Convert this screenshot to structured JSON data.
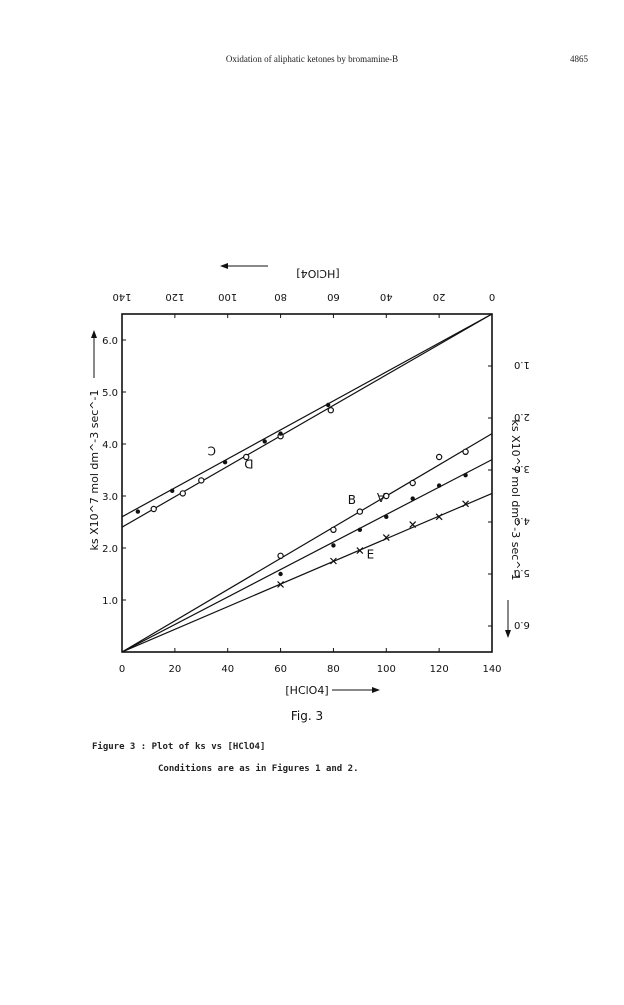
{
  "header": {
    "running_title": "Oxidation of aliphatic ketones by bromamine-B",
    "page_number": "4865"
  },
  "figure": {
    "label": "Fig. 3",
    "caption": "Figure 3 : Plot of ks vs [HClO4]",
    "conditions": "Conditions are as in Figures 1 and 2."
  },
  "chart_data": {
    "type": "line",
    "xlabel": "[HClO4]",
    "ylabel": "ks X10^7 mol dm^-3 sec^-1",
    "top_xlabel": "[HClO4]",
    "right_ylabel": "ks X10^7 mol dm^-3 sec^-1",
    "xlim": [
      0,
      140
    ],
    "ylim": [
      0,
      6.5
    ],
    "x_ticks": [
      "0",
      "20",
      "40",
      "60",
      "80",
      "100",
      "120",
      "140"
    ],
    "y_ticks": [
      "1.0",
      "2.0",
      "3.0",
      "4.0",
      "5.0",
      "6.0"
    ],
    "top_x_ticks": [
      "140",
      "120",
      "100",
      "80",
      "60",
      "40",
      "20",
      "0"
    ],
    "right_y_ticks": [
      "1.0",
      "2.0",
      "3.0",
      "4.0",
      "5.0",
      "6.0"
    ],
    "top_axis_note": "top and right axes run reversed (rotated 180°)",
    "series": [
      {
        "name": "D",
        "axis": "top-right",
        "marker": "circle-arrow",
        "line_x": [
          0,
          140
        ],
        "line_y": [
          0,
          4.1
        ],
        "points_x": [
          128,
          117,
          110,
          93,
          80,
          61
        ],
        "points_y": [
          3.75,
          3.45,
          3.2,
          2.75,
          2.35,
          1.85
        ]
      },
      {
        "name": "C",
        "axis": "top-right",
        "marker": "dot-arrow",
        "line_x": [
          0,
          140
        ],
        "line_y": [
          0,
          3.9
        ],
        "points_x": [
          134,
          121,
          101,
          86,
          80,
          62
        ],
        "points_y": [
          3.8,
          3.4,
          2.85,
          2.45,
          2.3,
          1.75
        ]
      },
      {
        "name": "B",
        "axis": "bottom-left",
        "marker": "circle",
        "line_x": [
          0,
          140
        ],
        "line_y": [
          0,
          4.2
        ],
        "points_x": [
          60,
          80,
          90,
          100,
          110,
          120,
          130
        ],
        "points_y": [
          1.85,
          2.35,
          2.7,
          3.0,
          3.25,
          3.75,
          3.85
        ]
      },
      {
        "name": "A",
        "axis": "bottom-left",
        "marker": "dot",
        "line_x": [
          0,
          140
        ],
        "line_y": [
          0,
          3.7
        ],
        "points_x": [
          60,
          80,
          90,
          100,
          110,
          120,
          130
        ],
        "points_y": [
          1.5,
          2.05,
          2.35,
          2.6,
          2.95,
          3.2,
          3.4
        ]
      },
      {
        "name": "E",
        "axis": "bottom-left",
        "marker": "cross",
        "line_x": [
          0,
          140
        ],
        "line_y": [
          0,
          3.05
        ],
        "points_x": [
          60,
          80,
          90,
          100,
          110,
          120,
          130
        ],
        "points_y": [
          1.3,
          1.75,
          1.95,
          2.2,
          2.45,
          2.6,
          2.85
        ]
      }
    ]
  }
}
